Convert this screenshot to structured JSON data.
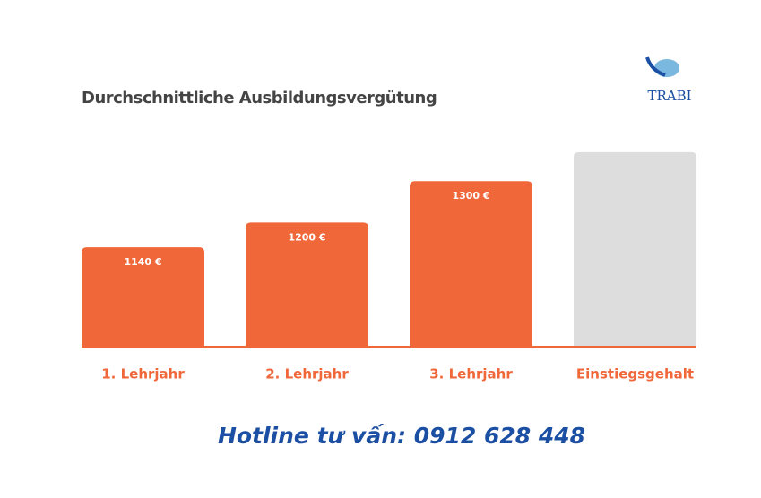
{
  "chart_data": {
    "type": "bar",
    "title": "Durchschnittliche Ausbildungsvergütung",
    "categories": [
      "1. Lehrjahr",
      "2. Lehrjahr",
      "3. Lehrjahr",
      "Einstiegsgehalt"
    ],
    "values": [
      1140,
      1200,
      1300,
      1370
    ],
    "value_labels": [
      "1140 €",
      "1200 €",
      "1300 €",
      null
    ],
    "colors": [
      "#f0673a",
      "#f0673a",
      "#f0673a",
      "#dddddd"
    ],
    "label_color": "#f0673a",
    "ylim": [
      900,
      1400
    ]
  },
  "logo": "TRABI",
  "hotline": "Hotline tư vấn: 0912 628 448"
}
